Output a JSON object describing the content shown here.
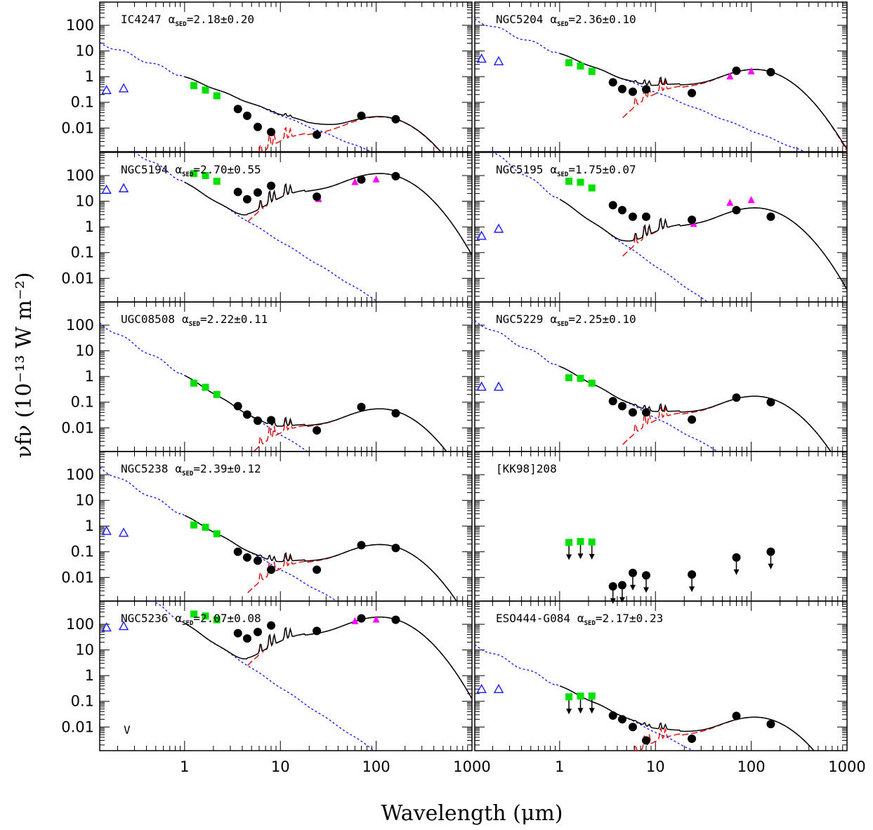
{
  "chart_data": {
    "type": "scatter",
    "xlabel": "Wavelength (μm)",
    "ylabel": "νfν (10⁻¹³ W m⁻²)",
    "x_scale": "log",
    "y_scale": "log",
    "xlim": [
      0.13,
      1000
    ],
    "ylim": [
      0.0012,
      800
    ],
    "x_ticks": [
      "1",
      "10",
      "100",
      "1000"
    ],
    "y_ticks": [
      "100",
      "10",
      "1",
      "0.1",
      "0.01"
    ],
    "grid": false,
    "colors": {
      "model_total": "#000000",
      "stellar_model": "#1a1aff",
      "dust_model": "#e00000",
      "uv_points": "#1a1aff",
      "near_ir_points": "#00e000",
      "iras_points": "#ff00ff",
      "ir_points": "#000000"
    },
    "panels": [
      {
        "name": "IC4247",
        "alpha_label": "α",
        "alpha_sub": "SED",
        "alpha_value": "=2.18±0.20",
        "corner_note": "",
        "uv": [
          [
            0.153,
            0.3
          ],
          [
            0.231,
            0.35
          ]
        ],
        "nir": [
          [
            1.25,
            0.45
          ],
          [
            1.65,
            0.3
          ],
          [
            2.17,
            0.18
          ]
        ],
        "ir": [
          [
            3.6,
            0.055
          ],
          [
            4.5,
            0.03
          ],
          [
            5.8,
            0.011
          ],
          [
            8.0,
            0.007
          ],
          [
            24,
            0.0055
          ],
          [
            70,
            0.03
          ],
          [
            160,
            0.022
          ]
        ],
        "iras": [],
        "upper_limit_indices": []
      },
      {
        "name": "NGC5204",
        "alpha_label": "α",
        "alpha_sub": "SED",
        "alpha_value": "=2.36±0.10",
        "corner_note": "",
        "uv": [
          [
            0.153,
            5
          ],
          [
            0.231,
            4
          ]
        ],
        "nir": [
          [
            1.25,
            3.5
          ],
          [
            1.65,
            2.6
          ],
          [
            2.17,
            1.6
          ]
        ],
        "ir": [
          [
            3.6,
            0.6
          ],
          [
            4.5,
            0.33
          ],
          [
            5.8,
            0.26
          ],
          [
            8.0,
            0.32
          ],
          [
            24,
            0.23
          ],
          [
            70,
            1.7
          ],
          [
            160,
            1.5
          ]
        ],
        "iras": [
          [
            60,
            1.0
          ],
          [
            100,
            1.6
          ]
        ],
        "upper_limit_indices": []
      },
      {
        "name": "NGC5194",
        "alpha_label": "α",
        "alpha_sub": "SED",
        "alpha_value": "=2.70±0.55",
        "corner_note": "",
        "uv": [
          [
            0.153,
            28
          ],
          [
            0.231,
            32
          ]
        ],
        "nir": [
          [
            1.25,
            120
          ],
          [
            1.65,
            100
          ],
          [
            2.17,
            60
          ]
        ],
        "ir": [
          [
            3.6,
            23
          ],
          [
            4.5,
            12
          ],
          [
            5.8,
            22
          ],
          [
            8.0,
            40
          ],
          [
            24,
            15
          ],
          [
            70,
            70
          ],
          [
            160,
            95
          ]
        ],
        "iras": [
          [
            25,
            12
          ],
          [
            60,
            55
          ],
          [
            100,
            70
          ]
        ],
        "upper_limit_indices": []
      },
      {
        "name": "NGC5195",
        "alpha_label": "α",
        "alpha_sub": "SED",
        "alpha_value": "=1.75±0.07",
        "corner_note": "",
        "uv": [
          [
            0.153,
            0.45
          ],
          [
            0.231,
            0.85
          ]
        ],
        "nir": [
          [
            1.25,
            60
          ],
          [
            1.65,
            55
          ],
          [
            2.17,
            33
          ]
        ],
        "ir": [
          [
            3.6,
            7
          ],
          [
            4.5,
            4.5
          ],
          [
            5.8,
            2.5
          ],
          [
            8.0,
            2.5
          ],
          [
            24,
            1.9
          ],
          [
            70,
            4.5
          ],
          [
            160,
            2.5
          ]
        ],
        "iras": [
          [
            25,
            1.3
          ],
          [
            60,
            8.5
          ],
          [
            100,
            11
          ]
        ],
        "upper_limit_indices": []
      },
      {
        "name": "UGC08508",
        "alpha_label": "α",
        "alpha_sub": "SED",
        "alpha_value": "=2.22±0.11",
        "corner_note": "",
        "uv": [],
        "nir": [
          [
            1.25,
            0.55
          ],
          [
            1.65,
            0.38
          ],
          [
            2.17,
            0.2
          ]
        ],
        "ir": [
          [
            3.6,
            0.07
          ],
          [
            4.5,
            0.033
          ],
          [
            5.8,
            0.019
          ],
          [
            8.0,
            0.02
          ],
          [
            24,
            0.008
          ],
          [
            70,
            0.065
          ],
          [
            160,
            0.037
          ]
        ],
        "iras": [],
        "upper_limit_indices": []
      },
      {
        "name": "NGC5229",
        "alpha_label": "α",
        "alpha_sub": "SED",
        "alpha_value": "=2.25±0.10",
        "corner_note": "",
        "uv": [
          [
            0.153,
            0.4
          ],
          [
            0.231,
            0.4
          ]
        ],
        "nir": [
          [
            1.25,
            0.9
          ],
          [
            1.65,
            0.85
          ],
          [
            2.17,
            0.55
          ]
        ],
        "ir": [
          [
            3.6,
            0.11
          ],
          [
            4.5,
            0.07
          ],
          [
            5.8,
            0.04
          ],
          [
            8.0,
            0.04
          ],
          [
            24,
            0.021
          ],
          [
            70,
            0.15
          ],
          [
            160,
            0.1
          ]
        ],
        "iras": [],
        "upper_limit_indices": []
      },
      {
        "name": "NGC5238",
        "alpha_label": "α",
        "alpha_sub": "SED",
        "alpha_value": "=2.39±0.12",
        "corner_note": "",
        "uv": [
          [
            0.153,
            0.65
          ],
          [
            0.231,
            0.55
          ]
        ],
        "nir": [
          [
            1.25,
            1.1
          ],
          [
            1.65,
            0.9
          ],
          [
            2.17,
            0.5
          ]
        ],
        "ir": [
          [
            3.6,
            0.1
          ],
          [
            4.5,
            0.06
          ],
          [
            5.8,
            0.045
          ],
          [
            8.0,
            0.02
          ],
          [
            24,
            0.02
          ],
          [
            70,
            0.18
          ],
          [
            160,
            0.14
          ]
        ],
        "iras": [],
        "upper_limit_indices": []
      },
      {
        "name": "[KK98]208",
        "alpha_label": "",
        "alpha_sub": "",
        "alpha_value": "",
        "corner_note": "",
        "uv": [],
        "nir": [
          [
            1.25,
            0.23
          ],
          [
            1.65,
            0.25
          ],
          [
            2.17,
            0.24
          ]
        ],
        "ir": [
          [
            3.6,
            0.0045
          ],
          [
            4.5,
            0.005
          ],
          [
            5.8,
            0.015
          ],
          [
            8.0,
            0.012
          ],
          [
            24,
            0.013
          ],
          [
            70,
            0.06
          ],
          [
            160,
            0.1
          ]
        ],
        "iras": [],
        "upper_limit_indices": [
          0,
          1,
          2,
          3,
          4,
          5,
          6
        ]
      },
      {
        "name": "NGC5236",
        "alpha_label": "α",
        "alpha_sub": "SED",
        "alpha_value": "=2.07±0.08",
        "corner_note": "V",
        "uv": [
          [
            0.153,
            75
          ],
          [
            0.231,
            85
          ]
        ],
        "nir": [
          [
            1.25,
            250
          ],
          [
            1.65,
            210
          ],
          [
            2.17,
            150
          ]
        ],
        "ir": [
          [
            3.6,
            45
          ],
          [
            4.5,
            28
          ],
          [
            5.8,
            50
          ],
          [
            8.0,
            90
          ],
          [
            24,
            55
          ],
          [
            70,
            170
          ],
          [
            160,
            150
          ]
        ],
        "iras": [
          [
            60,
            130
          ],
          [
            100,
            150
          ]
        ],
        "upper_limit_indices": []
      },
      {
        "name": "ESO444-G084",
        "alpha_label": "α",
        "alpha_sub": "SED",
        "alpha_value": "=2.17±0.23",
        "corner_note": "",
        "uv": [
          [
            0.153,
            0.3
          ],
          [
            0.231,
            0.3
          ]
        ],
        "nir": [
          [
            1.25,
            0.15
          ],
          [
            1.65,
            0.16
          ],
          [
            2.17,
            0.16
          ]
        ],
        "ir": [
          [
            3.6,
            0.028
          ],
          [
            4.5,
            0.02
          ],
          [
            5.8,
            0.01
          ],
          [
            8.0,
            0.003
          ],
          [
            24,
            0.0035
          ],
          [
            70,
            0.027
          ],
          [
            160,
            0.013
          ]
        ],
        "iras": [],
        "upper_limit_indices": [
          0,
          1,
          2
        ]
      }
    ]
  }
}
